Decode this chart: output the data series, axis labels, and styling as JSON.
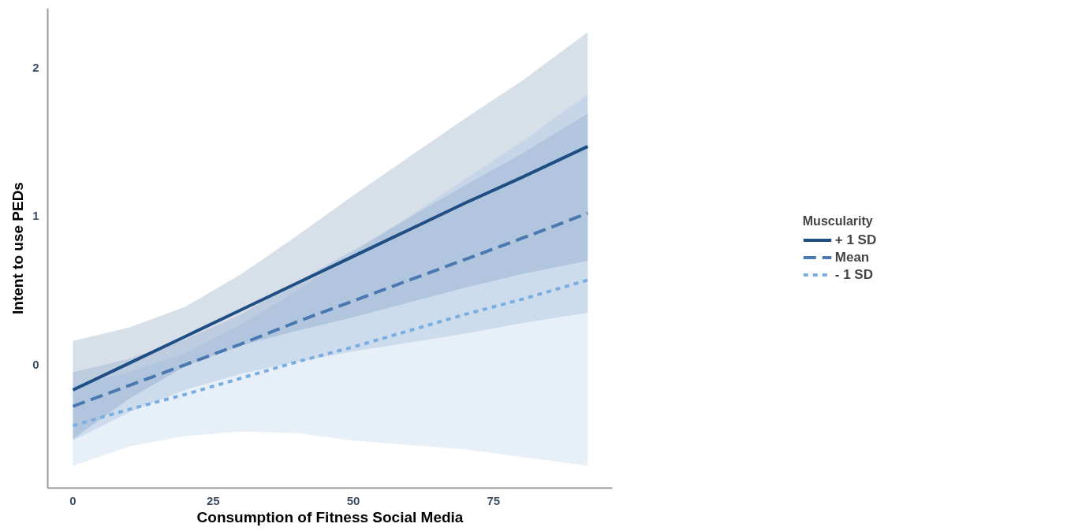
{
  "chart_data": {
    "type": "line",
    "xlabel": "Consumption of Fitness Social Media",
    "ylabel": "Intent to use PEDs",
    "legend_title": "Muscularity",
    "x": [
      0,
      10,
      20,
      30,
      40,
      50,
      60,
      70,
      80,
      91.8
    ],
    "series": [
      {
        "name": "+ 1 SD",
        "color": "#1f4e85",
        "line_style": "solid",
        "values": [
          -0.17,
          0.01,
          0.19,
          0.37,
          0.55,
          0.73,
          0.91,
          1.09,
          1.26,
          1.47
        ],
        "upper": [
          0.16,
          0.25,
          0.39,
          0.61,
          0.87,
          1.14,
          1.4,
          1.66,
          1.91,
          2.24
        ],
        "lower": [
          -0.5,
          -0.23,
          -0.01,
          0.13,
          0.23,
          0.32,
          0.42,
          0.52,
          0.61,
          0.7
        ]
      },
      {
        "name": "Mean",
        "color": "#4a78b0",
        "line_style": "dashed",
        "values": [
          -0.28,
          -0.14,
          0.0,
          0.14,
          0.29,
          0.43,
          0.57,
          0.71,
          0.85,
          1.02
        ],
        "upper": [
          -0.05,
          0.04,
          0.17,
          0.34,
          0.56,
          0.77,
          0.99,
          1.21,
          1.42,
          1.69
        ],
        "lower": [
          -0.51,
          -0.32,
          -0.17,
          -0.06,
          0.02,
          0.09,
          0.15,
          0.21,
          0.28,
          0.35
        ]
      },
      {
        "name": "- 1 SD",
        "color": "#7aaee0",
        "line_style": "dotted",
        "values": [
          -0.41,
          -0.3,
          -0.2,
          -0.09,
          0.02,
          0.12,
          0.23,
          0.34,
          0.44,
          0.57
        ],
        "upper": [
          -0.14,
          -0.05,
          0.08,
          0.27,
          0.5,
          0.75,
          1.0,
          1.25,
          1.5,
          1.82
        ],
        "lower": [
          -0.68,
          -0.55,
          -0.48,
          -0.45,
          -0.46,
          -0.51,
          -0.54,
          -0.57,
          -0.62,
          -0.68
        ]
      }
    ],
    "xlim": [
      -4.5,
      96.2
    ],
    "ylim": [
      -0.83,
      2.4
    ],
    "xticks": [
      0,
      25,
      50,
      75
    ],
    "yticks": [
      0,
      1,
      2
    ],
    "grid": false,
    "legend": "right",
    "marker": "none"
  }
}
